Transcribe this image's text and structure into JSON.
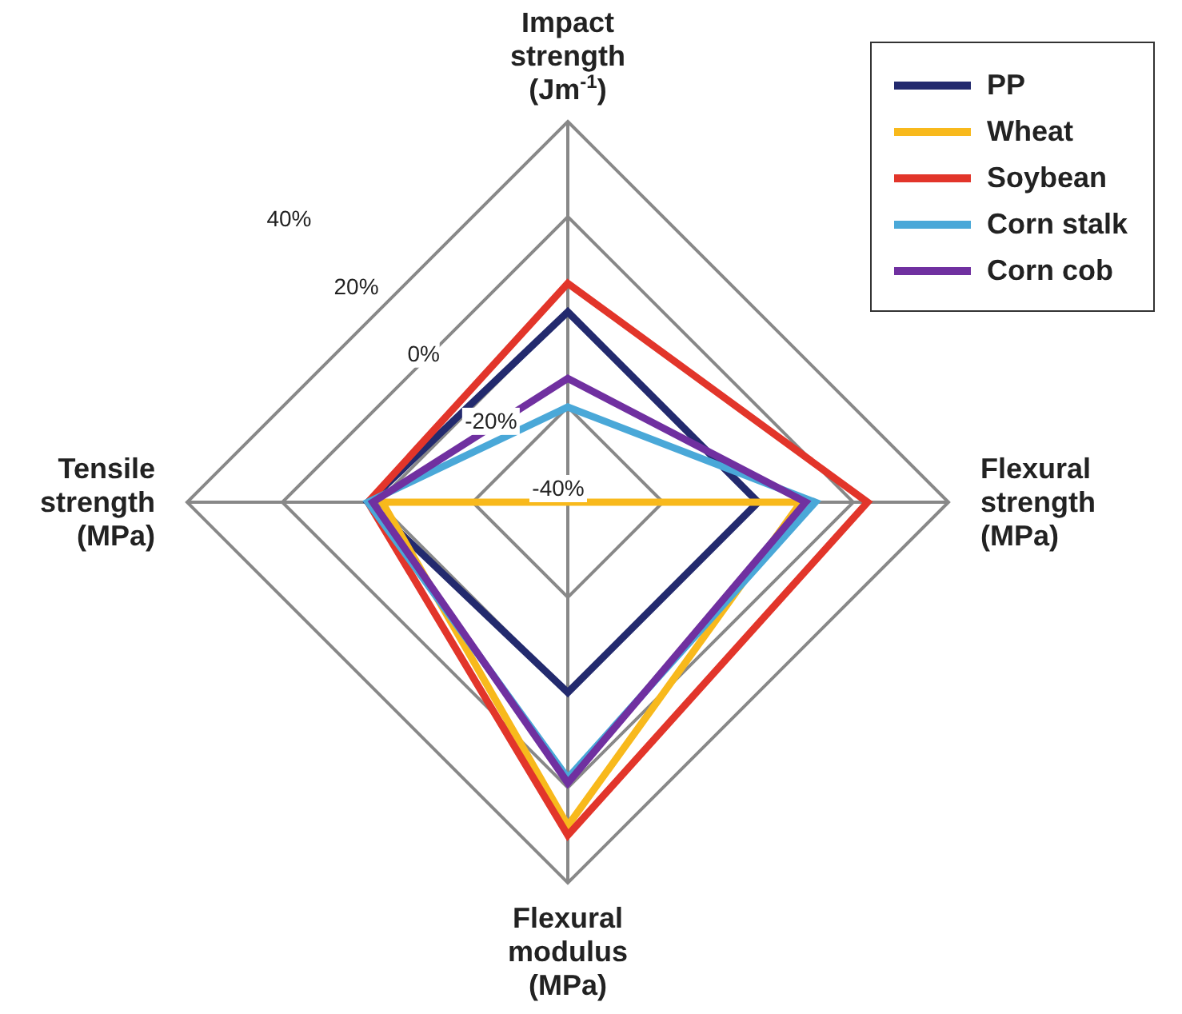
{
  "chart_data": {
    "type": "radar",
    "categories": [
      "Impact\nstrength\n(Jm$^{-1}$)",
      "Flexural\nstrength\n(MPa)",
      "Flexural\nmodulus\n(MPa)",
      "Tensile\nstrength\n(MPa)"
    ],
    "ylim": [
      -40,
      40
    ],
    "yticks": [
      {
        "value": -40,
        "label": "-40%"
      },
      {
        "value": -20,
        "label": "-20%"
      },
      {
        "value": 0,
        "label": "0%"
      },
      {
        "value": 20,
        "label": "20%"
      },
      {
        "value": 40,
        "label": "40%"
      }
    ],
    "grid": true,
    "legend": "top right",
    "series": [
      {
        "name": "PP",
        "color": "#232a6e",
        "values": [
          0,
          0,
          0,
          2
        ]
      },
      {
        "name": "Wheat",
        "color": "#f8b91c",
        "values": [
          -40,
          9,
          28,
          -1
        ]
      },
      {
        "name": "Soybean",
        "color": "#e2352a",
        "values": [
          6,
          23,
          30,
          2
        ]
      },
      {
        "name": "Corn stalk",
        "color": "#4aa8d8",
        "values": [
          -20,
          12,
          18,
          2
        ]
      },
      {
        "name": "Corn cob",
        "color": "#7030a0",
        "values": [
          -14,
          10,
          19,
          1
        ]
      }
    ]
  }
}
